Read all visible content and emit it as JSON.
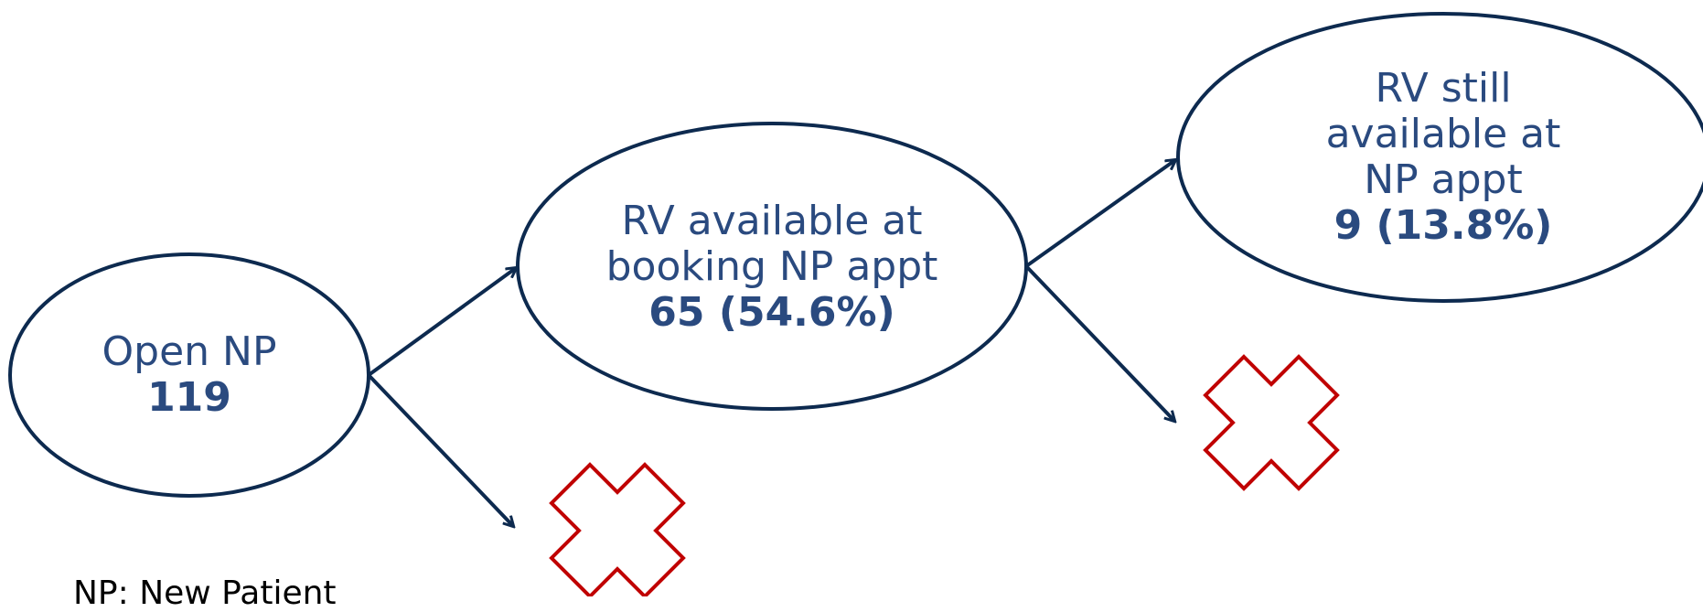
{
  "nodes": [
    {
      "id": "open-np",
      "label_lines": [
        "Open NP"
      ],
      "value": "119"
    },
    {
      "id": "rv-available-booking",
      "label_lines": [
        "RV available at",
        "booking NP appt"
      ],
      "value": "65 (54.6%)"
    },
    {
      "id": "rv-still-available",
      "label_lines": [
        "RV still",
        "available at",
        "NP appt"
      ],
      "value": "9 (13.8%)"
    }
  ],
  "footnote": "NP: New Patient",
  "colors": {
    "node_stroke": "#0d2a4f",
    "node_text": "#2a4a7f",
    "arrow": "#0d2a4f",
    "cross": "#c00000"
  },
  "icons": [
    "red-cross-icon",
    "red-cross-icon"
  ]
}
